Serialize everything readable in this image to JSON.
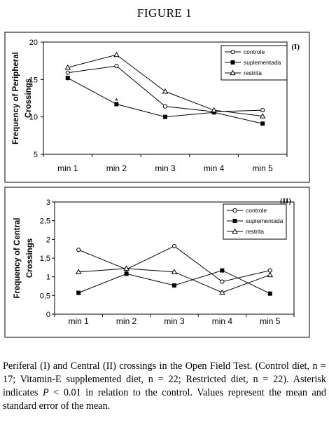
{
  "figure_title": "FIGURE  1",
  "caption": {
    "before_p": "Periferal (I) and Central (II) crossings in the Open Field Test. (Control diet, n = 17; Vitamin-E supplemented diet, n = 22; Restricted diet, n = 22).  Asterisk indicates ",
    "p_symbol": "P",
    "after_p": " < 0.01 in relation to the control. Values represent the mean and standard error of the mean."
  },
  "chart_data": [
    {
      "panel_label": "(I)",
      "type": "line",
      "ylabel_lines": [
        "Frequency of Peripheral",
        "Crossings"
      ],
      "categories": [
        "min 1",
        "min 2",
        "min 3",
        "min 4",
        "min 5"
      ],
      "ylim": [
        5,
        20
      ],
      "yticks": [
        5,
        10,
        15,
        20
      ],
      "ytick_labels": [
        "5",
        "10",
        "15",
        "20"
      ],
      "grid": false,
      "legend_position": "top-right",
      "series": [
        {
          "name": "controle",
          "marker": "circle-open",
          "values": [
            15.9,
            16.8,
            11.4,
            10.7,
            10.9
          ]
        },
        {
          "name": "suplementada",
          "marker": "square-filled",
          "values": [
            15.2,
            11.7,
            10.0,
            10.6,
            9.1
          ]
        },
        {
          "name": "restrita",
          "marker": "triangle-open",
          "values": [
            16.6,
            18.3,
            13.4,
            10.9,
            10.1
          ]
        }
      ],
      "annotations": [
        {
          "text": "*",
          "category": "min 2",
          "y": 12.1
        }
      ]
    },
    {
      "panel_label": "(II)",
      "type": "line",
      "ylabel_lines": [
        "Frequency of Central",
        "Crossings"
      ],
      "categories": [
        "min 1",
        "min 2",
        "min 3",
        "min 4",
        "min 5"
      ],
      "ylim": [
        0,
        3
      ],
      "yticks": [
        0,
        0.5,
        1,
        1.5,
        2,
        2.5,
        3
      ],
      "ytick_labels": [
        "0",
        "0,5",
        "1",
        "1,5",
        "2",
        "2,5",
        "3"
      ],
      "grid": false,
      "legend_position": "top-right",
      "series": [
        {
          "name": "controle",
          "marker": "circle-open",
          "values": [
            1.72,
            1.2,
            1.82,
            0.87,
            1.17
          ]
        },
        {
          "name": "suplementada",
          "marker": "square-filled",
          "values": [
            0.57,
            1.08,
            0.77,
            1.17,
            0.55
          ]
        },
        {
          "name": "restrita",
          "marker": "triangle-open",
          "values": [
            1.13,
            1.22,
            1.13,
            0.58,
            1.05
          ]
        }
      ],
      "annotations": []
    }
  ]
}
